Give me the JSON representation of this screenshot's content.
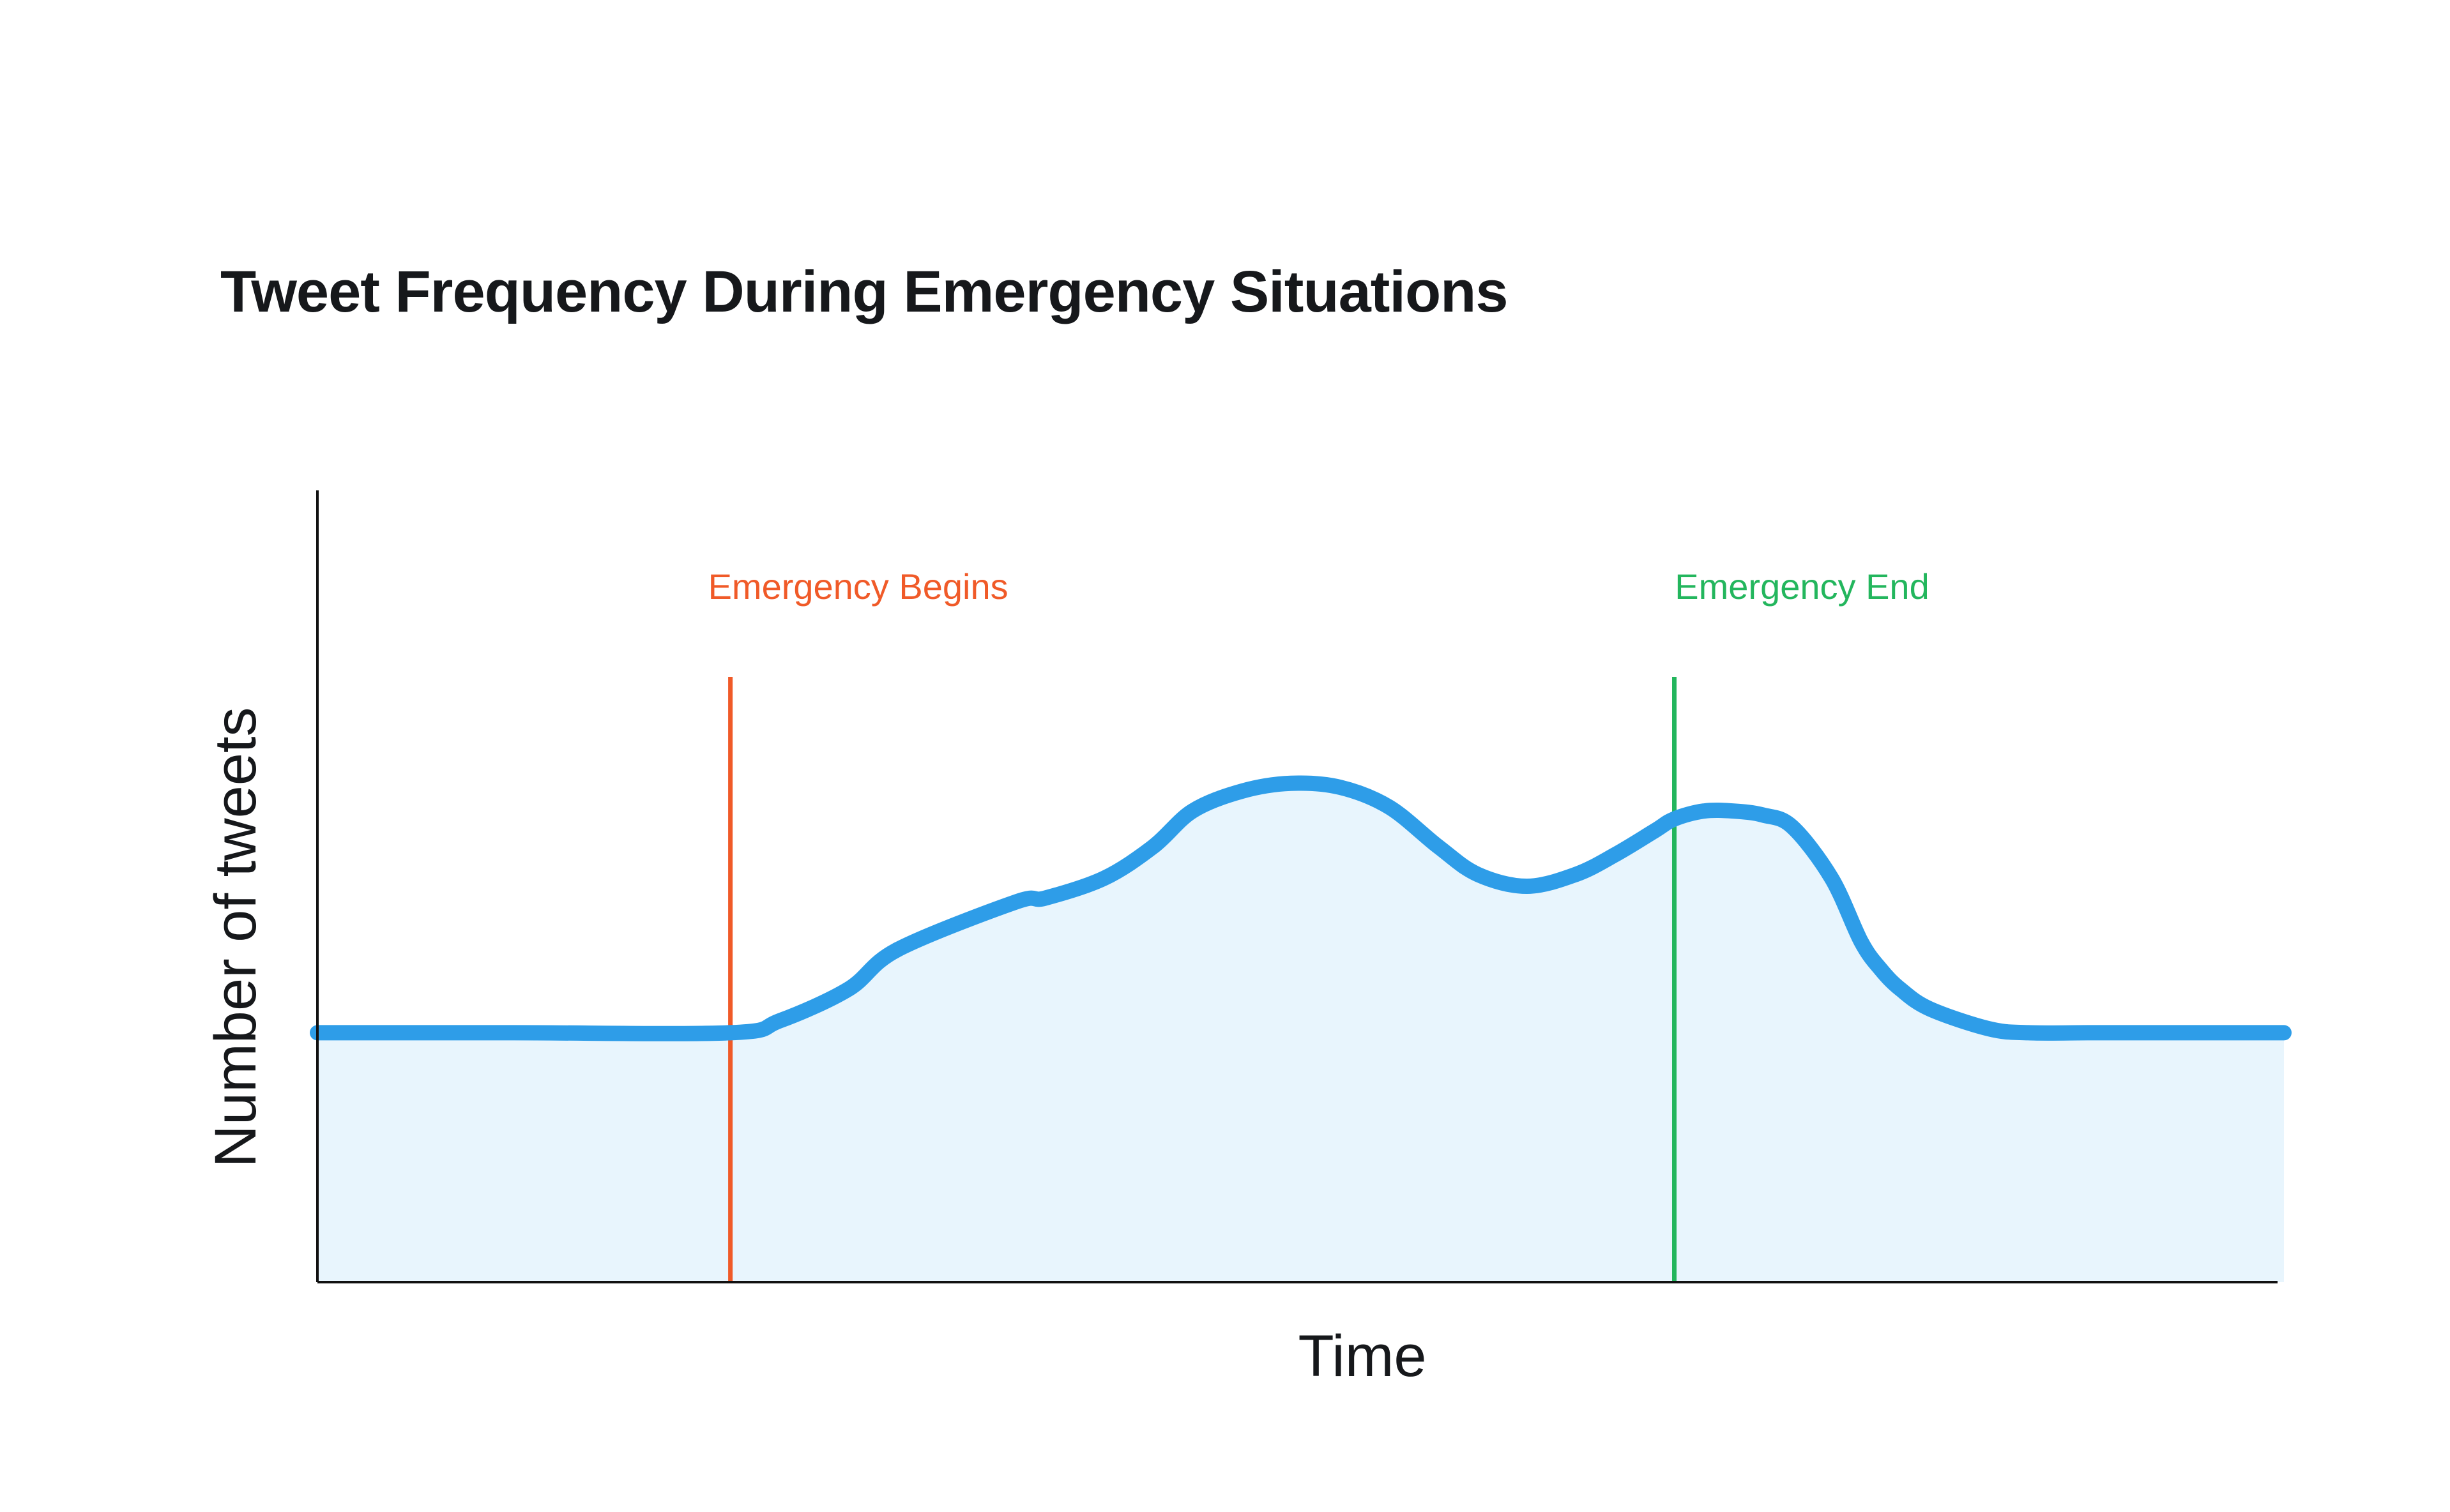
{
  "chart_data": {
    "type": "area",
    "title": "Tweet Frequency During Emergency Situations",
    "xlabel": "Time",
    "ylabel": "Number of tweets",
    "xlim": [
      0,
      100
    ],
    "ylim": [
      0,
      100
    ],
    "grid": false,
    "x_ticks_shown": false,
    "y_ticks_shown": false,
    "series": [
      {
        "x": [
          0,
          10,
          21,
          23.5,
          27,
          29.5,
          35.5,
          37,
          40,
          42.5,
          44.5,
          47,
          49.5,
          52,
          54.5,
          57,
          59,
          61.5,
          64,
          66,
          68,
          69,
          70.5,
          72,
          73.5,
          75,
          77,
          78.5,
          79.5,
          80.5,
          82,
          85,
          87,
          90,
          92,
          95,
          100
        ],
        "values": [
          31.5,
          31.5,
          31.5,
          33,
          37,
          42,
          48,
          48.5,
          51,
          55,
          59.5,
          62,
          63,
          62.5,
          60,
          55,
          51.5,
          50,
          51.5,
          54,
          57,
          58.5,
          59.5,
          59.5,
          59,
          57.5,
          51,
          43,
          39.5,
          37,
          34.5,
          32,
          31.5,
          31.5,
          31.5,
          31.5,
          31.5
        ]
      }
    ],
    "annotations": [
      {
        "label": "Emergency Begins",
        "x": 21,
        "color": "#f05a28"
      },
      {
        "label": "Emergency End",
        "x": 69,
        "color": "#23b65d"
      }
    ],
    "colors": {
      "line": "#2e9de8",
      "fill": "#e8f5fd",
      "axis": "#111111"
    }
  }
}
